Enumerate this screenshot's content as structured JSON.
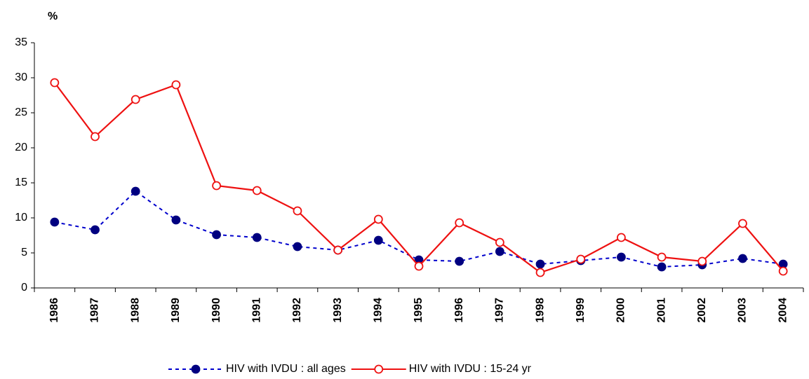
{
  "chart_data": {
    "type": "line",
    "y_label": "%",
    "categories": [
      "1986",
      "1987",
      "1988",
      "1989",
      "1990",
      "1991",
      "1992",
      "1993",
      "1994",
      "1995",
      "1996",
      "1997",
      "1998",
      "1999",
      "2000",
      "2001",
      "2002",
      "2003",
      "2004"
    ],
    "series": [
      {
        "name": "HIV with IVDU : all ages",
        "color": "#0000cc",
        "marker_color": "#000080",
        "dashed": true,
        "filled": true,
        "values": [
          9.4,
          8.3,
          13.8,
          9.7,
          7.6,
          7.2,
          5.9,
          5.4,
          6.8,
          4.0,
          3.8,
          5.2,
          3.4,
          3.9,
          4.4,
          3.0,
          3.3,
          4.2,
          3.4
        ]
      },
      {
        "name": "HIV with IVDU : 15-24 yr",
        "color": "#ee1111",
        "marker_color": "#ee1111",
        "dashed": false,
        "filled": false,
        "values": [
          29.3,
          21.6,
          26.9,
          29.0,
          14.6,
          13.9,
          11.0,
          5.4,
          9.8,
          3.1,
          9.3,
          6.5,
          2.2,
          4.1,
          7.2,
          4.4,
          3.8,
          9.2,
          2.4
        ]
      }
    ],
    "ylim": [
      0,
      35
    ],
    "yticks": [
      0,
      5,
      10,
      15,
      20,
      25,
      30,
      35
    ],
    "grid": false
  }
}
